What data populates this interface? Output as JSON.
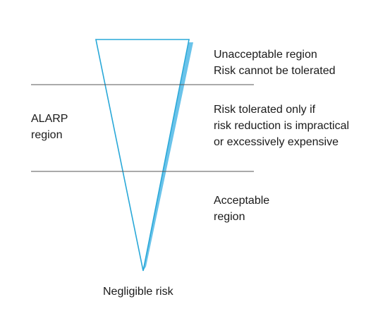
{
  "colors": {
    "triangle_stroke": "#29a8d8",
    "triangle_shadow": "#6ac3ea",
    "divider": "#555555",
    "text": "#1a1a1a"
  },
  "right_labels": {
    "unacceptable": [
      "Unacceptable region",
      "Risk cannot be tolerated"
    ],
    "tolerated": [
      "Risk tolerated only if",
      "risk reduction is impractical",
      "or excessively expensive"
    ],
    "acceptable": [
      "Acceptable",
      "region"
    ]
  },
  "left_labels": {
    "alarp": [
      "ALARP",
      "region"
    ]
  },
  "bottom_label": "Negligible risk"
}
